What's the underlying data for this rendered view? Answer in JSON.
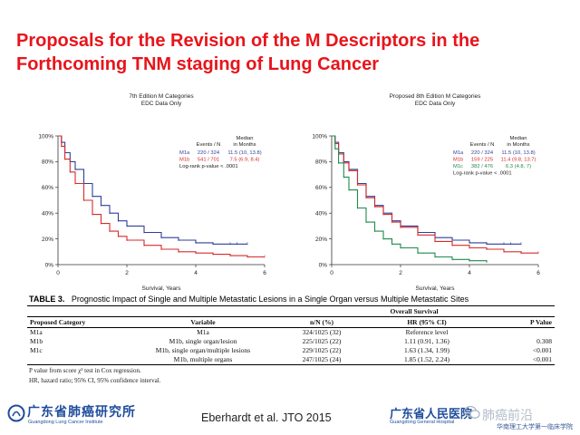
{
  "slide": {
    "title": "Proposals for the Revision of the M Descriptors in the Forthcoming TNM staging of Lung Cancer",
    "citation": "Eberhardt et al. JTO 2015",
    "logo_left_text": "广东省肺癌研究所",
    "logo_left_sub": "Guangdong Lung Cancer Institute",
    "logo_right_text": "广东省人民医院",
    "logo_right_sub": "Guangdong General Hospital",
    "watermark_text": "肺癌前沿",
    "watermark_sub": "华南理工大学第一临床学院"
  },
  "chart_data": [
    {
      "type": "line",
      "title": "7th Edition M Categories",
      "subtitle": "EDC Data Only",
      "xlabel": "Survival, Years",
      "ylabel": "",
      "xlim": [
        0,
        6
      ],
      "ylim": [
        0,
        100
      ],
      "x_ticks": [
        0,
        2,
        4,
        6
      ],
      "y_ticks": [
        "0%",
        "20%",
        "40%",
        "60%",
        "80%",
        "100%"
      ],
      "legend_header": {
        "events": "Events / N",
        "median": "Median in Months"
      },
      "legend_header_lines": {
        "events": [
          "",
          "Events / N"
        ],
        "median": [
          "Median",
          "in Months"
        ]
      },
      "series": [
        {
          "name": "M1a",
          "color": "#2f3f9a",
          "events": "220 / 324",
          "median": "11.5 (10, 13.8)",
          "x": [
            0,
            0.1,
            0.2,
            0.35,
            0.5,
            0.75,
            1,
            1.25,
            1.5,
            1.75,
            2,
            2.5,
            3,
            3.5,
            4,
            4.5,
            5,
            5.2,
            5.5
          ],
          "y": [
            100,
            95,
            87,
            80,
            74,
            63,
            53,
            46,
            40,
            34,
            30,
            25,
            21,
            19,
            17,
            16,
            16,
            16,
            16
          ]
        },
        {
          "name": "M1b",
          "color": "#d62b2b",
          "events": "541 / 701",
          "median": "7.5 (6.9, 8.4)",
          "x": [
            0,
            0.1,
            0.2,
            0.35,
            0.5,
            0.75,
            1,
            1.25,
            1.5,
            1.75,
            2,
            2.5,
            3,
            3.5,
            4,
            4.5,
            5,
            5.5,
            6
          ],
          "y": [
            100,
            92,
            82,
            72,
            63,
            50,
            39,
            32,
            26,
            22,
            19,
            15,
            12,
            10,
            9,
            8,
            7,
            6,
            6
          ]
        }
      ],
      "note": "Log-rank p-value < .0001"
    },
    {
      "type": "line",
      "title": "Proposed 8th Edition M Categories",
      "subtitle": "EDC Data Only",
      "xlabel": "Survival, Years",
      "ylabel": "",
      "xlim": [
        0,
        6
      ],
      "ylim": [
        0,
        100
      ],
      "x_ticks": [
        0,
        2,
        4,
        6
      ],
      "y_ticks": [
        "0%",
        "20%",
        "40%",
        "60%",
        "80%",
        "100%"
      ],
      "legend_header": {
        "events": "Events / N",
        "median": "Median in Months"
      },
      "legend_header_lines": {
        "events": [
          "",
          "Events / N"
        ],
        "median": [
          "Median",
          "in Months"
        ]
      },
      "series": [
        {
          "name": "M1a",
          "color": "#2f3f9a",
          "events": "220 / 324",
          "median": "11.5 (10, 13.8)",
          "x": [
            0,
            0.1,
            0.2,
            0.35,
            0.5,
            0.75,
            1,
            1.25,
            1.5,
            1.75,
            2,
            2.5,
            3,
            3.5,
            4,
            4.5,
            5,
            5.2,
            5.5
          ],
          "y": [
            100,
            95,
            87,
            80,
            74,
            63,
            53,
            46,
            40,
            34,
            30,
            25,
            21,
            19,
            17,
            16,
            16,
            16,
            16
          ]
        },
        {
          "name": "M1b",
          "color": "#d62b2b",
          "events": "159 / 225",
          "median": "11.4 (9.8, 13.7)",
          "x": [
            0,
            0.1,
            0.2,
            0.35,
            0.5,
            0.75,
            1,
            1.25,
            1.5,
            1.75,
            2,
            2.5,
            3,
            3.5,
            4,
            4.5,
            5,
            5.5,
            6
          ],
          "y": [
            100,
            94,
            86,
            79,
            73,
            62,
            52,
            45,
            39,
            33,
            29,
            23,
            18,
            15,
            13,
            12,
            10,
            9,
            9
          ]
        },
        {
          "name": "M1c",
          "color": "#1f8a4c",
          "events": "382 / 476",
          "median": "6.3 (4.8, 7)",
          "x": [
            0,
            0.1,
            0.2,
            0.35,
            0.5,
            0.75,
            1,
            1.25,
            1.5,
            1.75,
            2,
            2.5,
            3,
            3.5,
            4,
            4.5
          ],
          "y": [
            100,
            90,
            79,
            68,
            58,
            44,
            33,
            26,
            20,
            16,
            13,
            9,
            6,
            4,
            3,
            2
          ]
        }
      ],
      "note": "Log-rank p-value < .0001"
    }
  ],
  "table": {
    "label": "TABLE 3.",
    "caption": "Prognostic Impact of Single and Multiple Metastatic Lesions in a Single Organ versus Multiple Metastatic Sites",
    "group_header": "Overall Survival",
    "columns": [
      "Proposed Category",
      "Variable",
      "n/N (%)",
      "HR (95% CI)",
      "P Value"
    ],
    "rows": [
      [
        "M1a",
        "M1a",
        "324/1025 (32)",
        "Reference level",
        ""
      ],
      [
        "M1b",
        "M1b, single organ/lesion",
        "225/1025 (22)",
        "1.11 (0.91, 1.36)",
        "0.308"
      ],
      [
        "M1c",
        "M1b, single organ/multiple lesions",
        "229/1025 (22)",
        "1.63 (1.34, 1.99)",
        "<0.001"
      ],
      [
        "",
        "M1b, multiple organs",
        "247/1025 (24)",
        "1.85 (1.52, 2.24)",
        "<0.001"
      ]
    ],
    "footnotes": [
      "P value from score χ² test in Cox regression.",
      "HR, hazard ratio; 95% CI, 95% confidence interval."
    ]
  }
}
